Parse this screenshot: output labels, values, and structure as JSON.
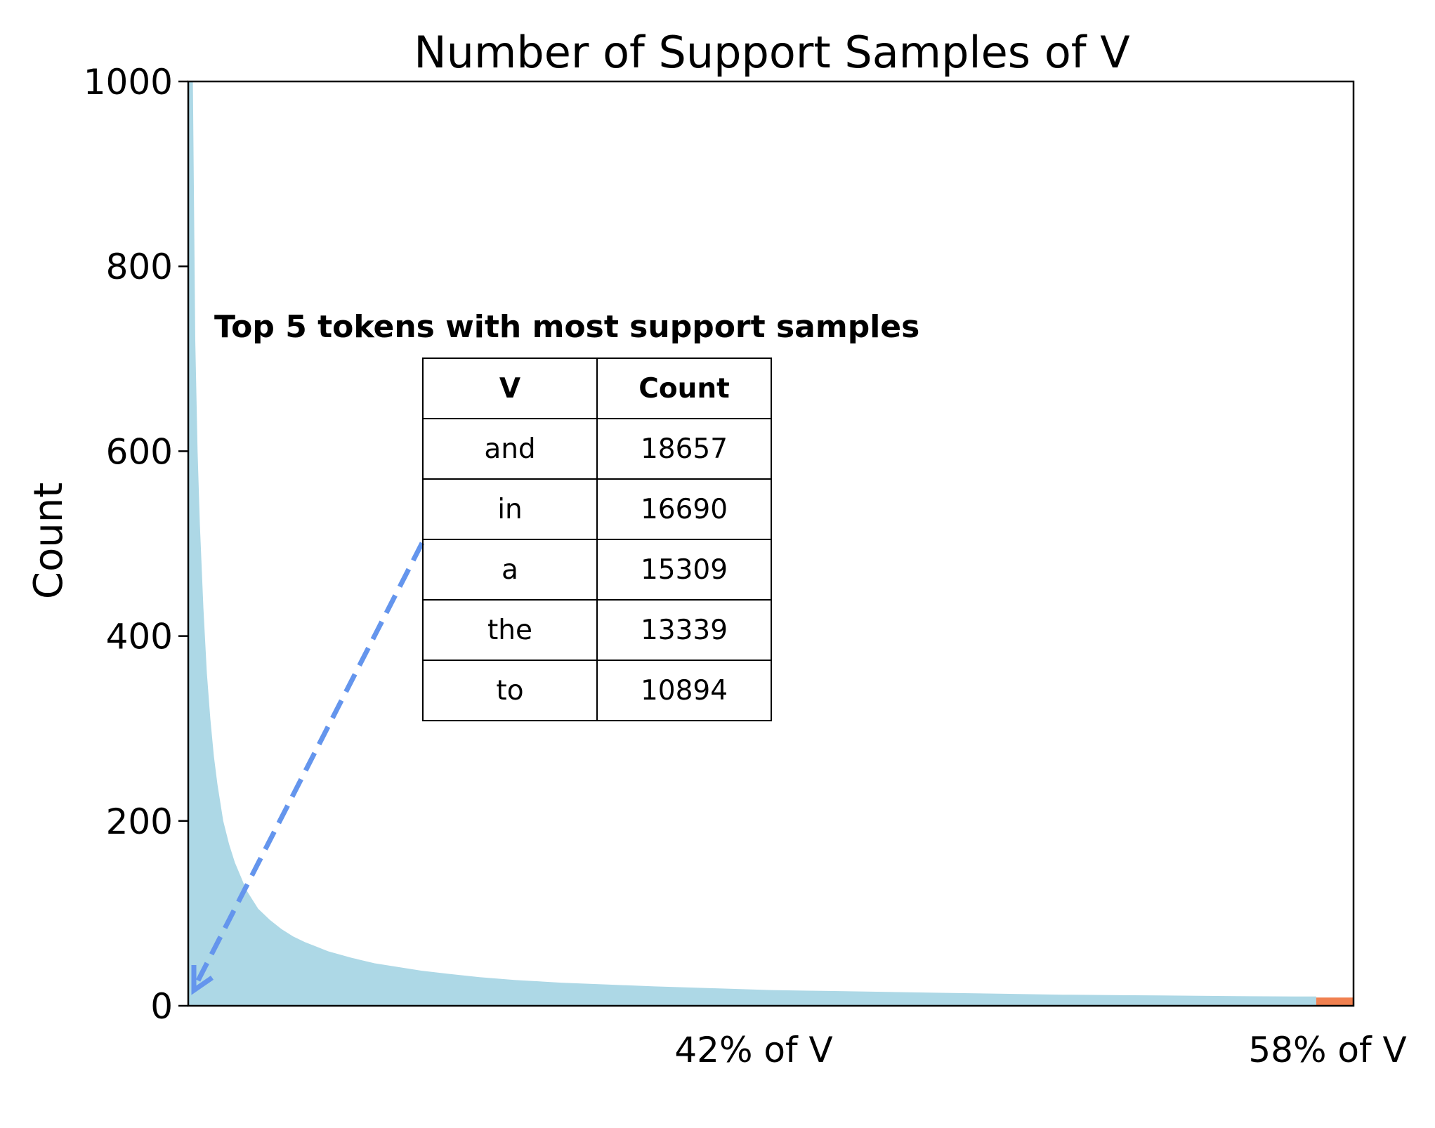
{
  "chart_data": {
    "type": "area",
    "title": "Number of Support Samples of V",
    "xlabel": "",
    "ylabel": "Count",
    "ylim": [
      0,
      1000
    ],
    "yticks": [
      0,
      200,
      400,
      600,
      800,
      1000
    ],
    "xlim": [
      0,
      100
    ],
    "grid": false,
    "series": [
      {
        "name": "42% of V",
        "color": "#add8e6",
        "x": [
          0.0,
          0.2,
          0.4,
          0.6,
          0.8,
          1.0,
          1.3,
          1.6,
          1.9,
          2.2,
          2.5,
          3.0,
          3.5,
          4.0,
          4.5,
          5.0,
          6.0,
          7.0,
          8.0,
          9.0,
          10.0,
          11.0,
          12.0,
          14.0,
          16.0,
          18.0,
          20.0,
          22.0,
          25.0,
          28.0,
          32.0,
          36.0,
          40.0,
          45.0,
          50.0,
          55.0,
          60.0,
          65.0,
          70.0,
          75.0,
          80.0,
          85.0,
          90.0,
          95.0,
          96.8
        ],
        "values": [
          1000,
          1000,
          1000,
          720,
          600,
          520,
          430,
          360,
          310,
          270,
          240,
          200,
          175,
          155,
          140,
          125,
          105,
          93,
          83,
          75,
          69,
          64,
          59,
          52,
          46,
          42,
          38,
          35,
          31,
          28,
          25,
          23,
          21,
          19,
          17,
          16,
          15,
          14,
          13,
          12,
          11.5,
          11,
          10.5,
          10,
          10
        ]
      },
      {
        "name": "58% of V",
        "color": "#f08050",
        "x": [
          96.8,
          100
        ],
        "values": [
          9,
          9
        ]
      }
    ],
    "annotations": [
      {
        "text": "42% of V",
        "color": "#6495ed"
      },
      {
        "text": "58% of V",
        "color": "#f08050"
      }
    ]
  },
  "inset": {
    "title": "Top 5 tokens with most support samples",
    "header": [
      "V",
      "Count"
    ],
    "rows": [
      [
        "and",
        "18657"
      ],
      [
        "in",
        "16690"
      ],
      [
        "a",
        "15309"
      ],
      [
        "the",
        "13339"
      ],
      [
        "to",
        "10894"
      ]
    ]
  }
}
